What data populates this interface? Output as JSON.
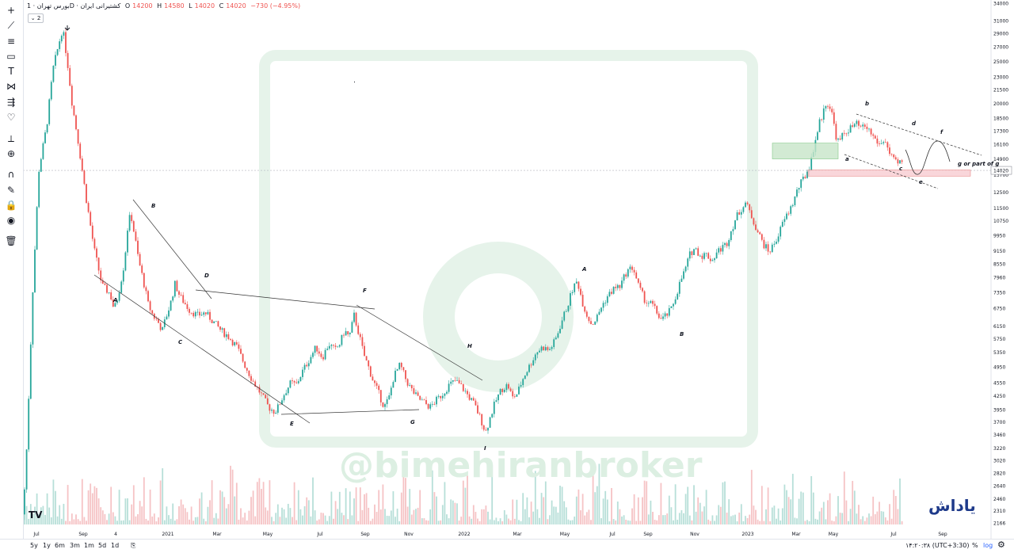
{
  "header": {
    "symbol": "بورس تهران · 1D · کشتیرانی ایران",
    "open_label": "O",
    "open": "14200",
    "high_label": "H",
    "high": "14580",
    "low_label": "L",
    "low": "14020",
    "close_label": "C",
    "close": "14020",
    "change": "−730 (−4.95%)",
    "collapse_count": "2"
  },
  "toolbar": {
    "icons": [
      "crosshair-icon",
      "trend-line-icon",
      "fib-icon",
      "rectangle-icon",
      "text-icon",
      "pattern-icon",
      "forecast-icon",
      "heart-icon",
      "ruler-icon",
      "zoom-icon",
      "magnet-icon",
      "lock-drawing-icon",
      "lock-icon",
      "eye-icon",
      "trash-icon"
    ]
  },
  "bottom": {
    "ranges": [
      "5y",
      "1y",
      "6m",
      "3m",
      "1m",
      "5d",
      "1d"
    ],
    "time": "۱۴:۲۰:۳۸ (UTC+3:30)",
    "percent": "%",
    "log": "log",
    "auto": "auto"
  },
  "watermark": "@bimehiranbroker",
  "brand": "یاداش",
  "tv_logo": "TV",
  "colors": {
    "up": "#26a69a",
    "down": "#ef5350",
    "accent": "#2962ff"
  },
  "chart_data": {
    "type": "candlestick",
    "title": "",
    "price_scale": "log",
    "y_ticks": [
      34000,
      31000,
      29000,
      27000,
      25000,
      23000,
      21500,
      20000,
      18500,
      17300,
      16100,
      14900,
      14020,
      13700,
      12500,
      11500,
      10750,
      9950,
      9150,
      8550,
      7960,
      7350,
      6750,
      6150,
      5750,
      5350,
      4950,
      4550,
      4250,
      3950,
      3700,
      3460,
      3220,
      3020,
      2820,
      2640,
      2460,
      2310,
      2166
    ],
    "last_price": "14020",
    "x_ticks": [
      "Jul",
      "Sep",
      "4",
      "2021",
      "Mar",
      "May",
      "Jul",
      "Sep",
      "Nov",
      "2022",
      "Mar",
      "May",
      "Jul",
      "Sep",
      "Nov",
      "2023",
      "Mar",
      "May",
      "Jul",
      "Sep"
    ],
    "price_path": [
      [
        0,
        2200
      ],
      [
        5,
        3300
      ],
      [
        12,
        7200
      ],
      [
        20,
        14000
      ],
      [
        30,
        17800
      ],
      [
        38,
        24000
      ],
      [
        46,
        27800
      ],
      [
        50,
        29800
      ],
      [
        56,
        25000
      ],
      [
        62,
        20000
      ],
      [
        70,
        16200
      ],
      [
        80,
        12000
      ],
      [
        90,
        9200
      ],
      [
        100,
        7600
      ],
      [
        110,
        7300
      ],
      [
        115,
        6700
      ],
      [
        120,
        7200
      ],
      [
        128,
        8600
      ],
      [
        132,
        10300
      ],
      [
        136,
        11200
      ],
      [
        141,
        9900
      ],
      [
        146,
        8700
      ],
      [
        152,
        7800
      ],
      [
        158,
        6900
      ],
      [
        164,
        6500
      ],
      [
        170,
        6300
      ],
      [
        176,
        6000
      ],
      [
        180,
        6400
      ],
      [
        186,
        6900
      ],
      [
        192,
        7700
      ],
      [
        198,
        7200
      ],
      [
        205,
        6900
      ],
      [
        210,
        6700
      ],
      [
        220,
        6500
      ],
      [
        230,
        6600
      ],
      [
        240,
        6300
      ],
      [
        250,
        6000
      ],
      [
        260,
        5800
      ],
      [
        270,
        5500
      ],
      [
        280,
        5000
      ],
      [
        290,
        4600
      ],
      [
        300,
        4300
      ],
      [
        310,
        4000
      ],
      [
        318,
        3900
      ],
      [
        322,
        4000
      ],
      [
        330,
        4300
      ],
      [
        338,
        4550
      ],
      [
        345,
        4500
      ],
      [
        352,
        4800
      ],
      [
        360,
        5100
      ],
      [
        370,
        5500
      ],
      [
        378,
        5200
      ],
      [
        386,
        5600
      ],
      [
        394,
        5400
      ],
      [
        400,
        5600
      ],
      [
        406,
        6000
      ],
      [
        412,
        5800
      ],
      [
        418,
        6500
      ],
      [
        424,
        5900
      ],
      [
        430,
        5300
      ],
      [
        436,
        4950
      ],
      [
        442,
        4600
      ],
      [
        448,
        4350
      ],
      [
        456,
        4000
      ],
      [
        462,
        4200
      ],
      [
        468,
        4700
      ],
      [
        476,
        5000
      ],
      [
        484,
        4600
      ],
      [
        490,
        4400
      ],
      [
        498,
        4200
      ],
      [
        506,
        4100
      ],
      [
        514,
        4000
      ],
      [
        522,
        4150
      ],
      [
        530,
        4300
      ],
      [
        538,
        4500
      ],
      [
        546,
        4600
      ],
      [
        554,
        4450
      ],
      [
        562,
        4250
      ],
      [
        570,
        4050
      ],
      [
        578,
        3750
      ],
      [
        584,
        3500
      ],
      [
        590,
        3800
      ],
      [
        596,
        4100
      ],
      [
        604,
        4400
      ],
      [
        612,
        4500
      ],
      [
        618,
        4200
      ],
      [
        624,
        4300
      ],
      [
        632,
        4700
      ],
      [
        640,
        5000
      ],
      [
        648,
        5350
      ],
      [
        656,
        5500
      ],
      [
        664,
        5400
      ],
      [
        672,
        5700
      ],
      [
        680,
        6300
      ],
      [
        688,
        6900
      ],
      [
        694,
        7500
      ],
      [
        700,
        7800
      ],
      [
        706,
        7000
      ],
      [
        712,
        6500
      ],
      [
        718,
        6200
      ],
      [
        724,
        6400
      ],
      [
        730,
        6800
      ],
      [
        738,
        7200
      ],
      [
        746,
        7500
      ],
      [
        754,
        7600
      ],
      [
        762,
        8200
      ],
      [
        770,
        8400
      ],
      [
        778,
        7500
      ],
      [
        786,
        7000
      ],
      [
        794,
        6900
      ],
      [
        800,
        6600
      ],
      [
        806,
        6350
      ],
      [
        812,
        6500
      ],
      [
        818,
        6700
      ],
      [
        824,
        7200
      ],
      [
        830,
        7800
      ],
      [
        836,
        8300
      ],
      [
        842,
        9000
      ],
      [
        848,
        9300
      ],
      [
        856,
        8900
      ],
      [
        862,
        9000
      ],
      [
        870,
        8700
      ],
      [
        876,
        9100
      ],
      [
        882,
        9300
      ],
      [
        888,
        9500
      ],
      [
        894,
        10200
      ],
      [
        900,
        10900
      ],
      [
        906,
        11400
      ],
      [
        912,
        11800
      ],
      [
        918,
        11200
      ],
      [
        924,
        10500
      ],
      [
        930,
        9900
      ],
      [
        936,
        9400
      ],
      [
        942,
        9100
      ],
      [
        948,
        9500
      ],
      [
        954,
        10000
      ],
      [
        960,
        10700
      ],
      [
        966,
        11200
      ],
      [
        972,
        11800
      ],
      [
        978,
        12700
      ],
      [
        984,
        13300
      ],
      [
        988,
        13700
      ],
      [
        994,
        14500
      ],
      [
        998,
        15800
      ],
      [
        1002,
        17000
      ],
      [
        1006,
        18200
      ],
      [
        1010,
        19000
      ],
      [
        1014,
        20200
      ],
      [
        1018,
        19700
      ],
      [
        1022,
        18700
      ],
      [
        1026,
        16900
      ],
      [
        1030,
        16200
      ],
      [
        1034,
        16800
      ],
      [
        1040,
        17300
      ],
      [
        1046,
        17600
      ],
      [
        1052,
        17900
      ],
      [
        1058,
        17500
      ],
      [
        1064,
        17700
      ],
      [
        1070,
        17100
      ],
      [
        1076,
        16500
      ],
      [
        1082,
        16000
      ],
      [
        1088,
        16600
      ],
      [
        1092,
        15600
      ],
      [
        1096,
        15000
      ],
      [
        1100,
        14700
      ],
      [
        1104,
        14450
      ],
      [
        1108,
        14800
      ],
      [
        1112,
        14020
      ]
    ],
    "annotations": [
      "A",
      "B",
      "C",
      "D",
      "E",
      "F",
      "G",
      "H",
      "I",
      "A",
      "B",
      "a",
      "b",
      "c",
      "d",
      "e",
      "f",
      "g or part of g"
    ],
    "boxes": [
      {
        "name": "demand-zone-green",
        "price_low": 14900,
        "price_high": 16200,
        "color": "#a5d6a7"
      },
      {
        "name": "supply-zone-red",
        "price_low": 13600,
        "price_high": 14050,
        "color": "#f4b6bc"
      }
    ]
  }
}
